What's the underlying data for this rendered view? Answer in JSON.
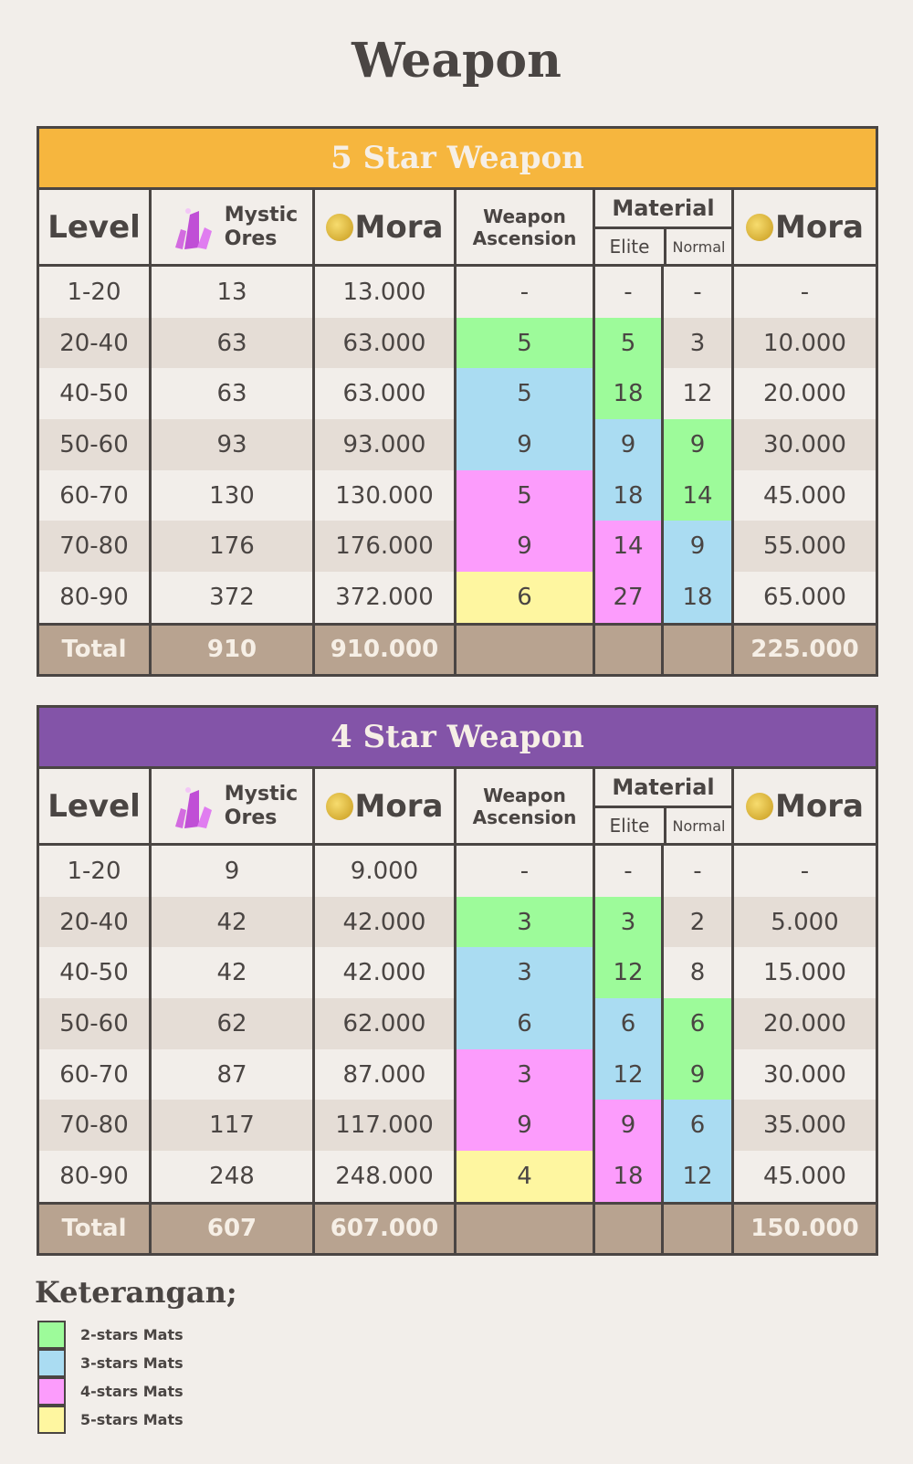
{
  "title": "Weapon",
  "colors": {
    "2": "#9dfb9a",
    "3": "#aadcf2",
    "4": "#fc9cfc",
    "5": "#fef6a0",
    "band5": "#f6b63e",
    "band4": "#8354a8",
    "stripe": "#e5ddd6",
    "total": "#b8a390"
  },
  "headers": {
    "level": "Level",
    "mystic": "Mystic",
    "ores": "Ores",
    "mora": "Mora",
    "weapon": "Weapon",
    "ascension": "Ascension",
    "material": "Material",
    "elite": "Elite",
    "normal": "Normal",
    "mora2": "Mora"
  },
  "tables": [
    {
      "title": "5 Star Weapon",
      "band": "band5",
      "rows": [
        {
          "level": "1-20",
          "ores": "13",
          "mora": "13.000",
          "asc": "-",
          "elite": "-",
          "normal": "-",
          "mora2": "-",
          "tiers": [
            null,
            null,
            null
          ]
        },
        {
          "level": "20-40",
          "ores": "63",
          "mora": "63.000",
          "asc": "5",
          "elite": "5",
          "normal": "3",
          "mora2": "10.000",
          "tiers": [
            "2",
            "2",
            null
          ]
        },
        {
          "level": "40-50",
          "ores": "63",
          "mora": "63.000",
          "asc": "5",
          "elite": "18",
          "normal": "12",
          "mora2": "20.000",
          "tiers": [
            "3",
            "2",
            null
          ]
        },
        {
          "level": "50-60",
          "ores": "93",
          "mora": "93.000",
          "asc": "9",
          "elite": "9",
          "normal": "9",
          "mora2": "30.000",
          "tiers": [
            "3",
            "3",
            "2"
          ]
        },
        {
          "level": "60-70",
          "ores": "130",
          "mora": "130.000",
          "asc": "5",
          "elite": "18",
          "normal": "14",
          "mora2": "45.000",
          "tiers": [
            "4",
            "3",
            "2"
          ]
        },
        {
          "level": "70-80",
          "ores": "176",
          "mora": "176.000",
          "asc": "9",
          "elite": "14",
          "normal": "9",
          "mora2": "55.000",
          "tiers": [
            "4",
            "4",
            "3"
          ]
        },
        {
          "level": "80-90",
          "ores": "372",
          "mora": "372.000",
          "asc": "6",
          "elite": "27",
          "normal": "18",
          "mora2": "65.000",
          "tiers": [
            "5",
            "4",
            "3"
          ]
        }
      ],
      "total": {
        "label": "Total",
        "ores": "910",
        "mora": "910.000",
        "mora2": "225.000"
      }
    },
    {
      "title": "4 Star Weapon",
      "band": "band4",
      "rows": [
        {
          "level": "1-20",
          "ores": "9",
          "mora": "9.000",
          "asc": "-",
          "elite": "-",
          "normal": "-",
          "mora2": "-",
          "tiers": [
            null,
            null,
            null
          ]
        },
        {
          "level": "20-40",
          "ores": "42",
          "mora": "42.000",
          "asc": "3",
          "elite": "3",
          "normal": "2",
          "mora2": "5.000",
          "tiers": [
            "2",
            "2",
            null
          ]
        },
        {
          "level": "40-50",
          "ores": "42",
          "mora": "42.000",
          "asc": "3",
          "elite": "12",
          "normal": "8",
          "mora2": "15.000",
          "tiers": [
            "3",
            "2",
            null
          ]
        },
        {
          "level": "50-60",
          "ores": "62",
          "mora": "62.000",
          "asc": "6",
          "elite": "6",
          "normal": "6",
          "mora2": "20.000",
          "tiers": [
            "3",
            "3",
            "2"
          ]
        },
        {
          "level": "60-70",
          "ores": "87",
          "mora": "87.000",
          "asc": "3",
          "elite": "12",
          "normal": "9",
          "mora2": "30.000",
          "tiers": [
            "4",
            "3",
            "2"
          ]
        },
        {
          "level": "70-80",
          "ores": "117",
          "mora": "117.000",
          "asc": "9",
          "elite": "9",
          "normal": "6",
          "mora2": "35.000",
          "tiers": [
            "4",
            "4",
            "3"
          ]
        },
        {
          "level": "80-90",
          "ores": "248",
          "mora": "248.000",
          "asc": "4",
          "elite": "18",
          "normal": "12",
          "mora2": "45.000",
          "tiers": [
            "5",
            "4",
            "3"
          ]
        }
      ],
      "total": {
        "label": "Total",
        "ores": "607",
        "mora": "607.000",
        "mora2": "150.000"
      }
    }
  ],
  "legend": {
    "title": "Keterangan;",
    "items": [
      {
        "tier": "2",
        "label": "2-stars Mats"
      },
      {
        "tier": "3",
        "label": "3-stars Mats"
      },
      {
        "tier": "4",
        "label": "4-stars Mats"
      },
      {
        "tier": "5",
        "label": "5-stars Mats"
      }
    ]
  }
}
